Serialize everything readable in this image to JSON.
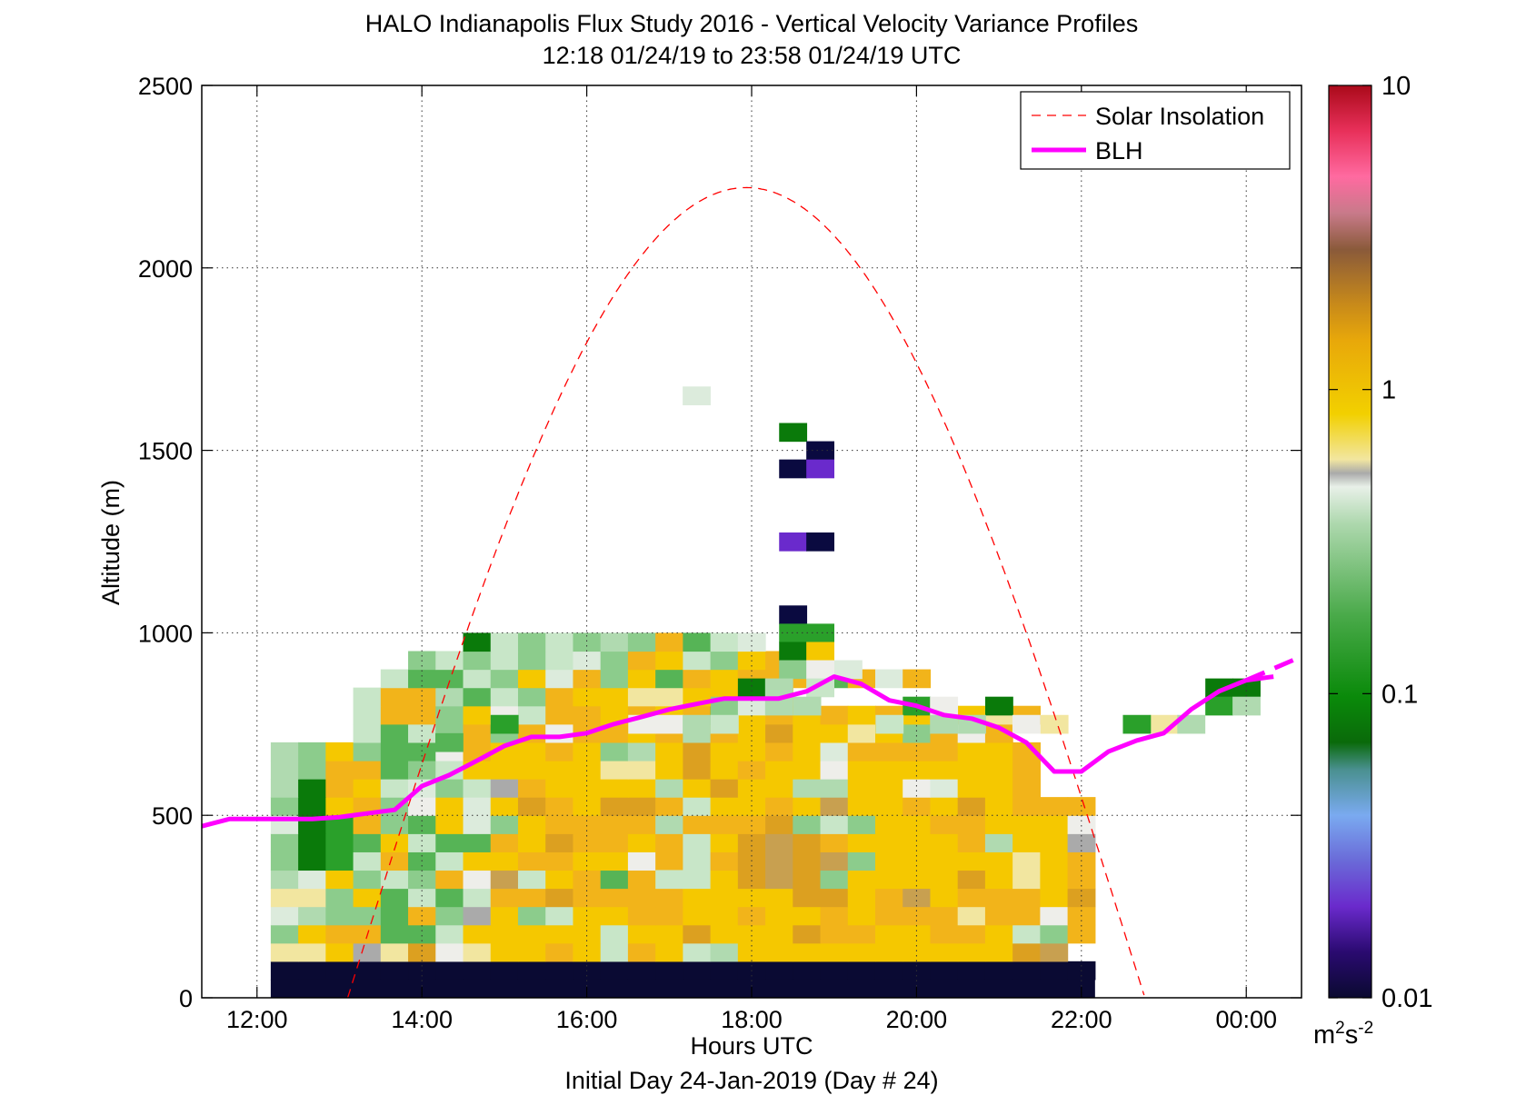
{
  "chart_data": {
    "type": "heatmap",
    "title": "HALO Indianapolis Flux Study 2016 - Vertical Velocity Variance Profiles",
    "subtitle": "12:18 01/24/19 to 23:58 01/24/19  UTC",
    "xlabel": "Hours UTC",
    "xlabel2": "Initial Day 24-Jan-2019 (Day # 24)",
    "ylabel": "Altitude (m)",
    "x_ticks": [
      {
        "label": "12:00",
        "value": 12
      },
      {
        "label": "14:00",
        "value": 14
      },
      {
        "label": "16:00",
        "value": 16
      },
      {
        "label": "18:00",
        "value": 18
      },
      {
        "label": "20:00",
        "value": 20
      },
      {
        "label": "22:00",
        "value": 22
      },
      {
        "label": "00:00",
        "value": 24
      }
    ],
    "y_ticks": [
      "0",
      "500",
      "1000",
      "1500",
      "2000",
      "2500"
    ],
    "xlim": [
      11.33,
      24.67
    ],
    "ylim": [
      0,
      2500
    ],
    "grid": true,
    "colorbar": {
      "scale": "log",
      "range": [
        0.01,
        10
      ],
      "ticks": [
        "0.01",
        "0.1",
        "1",
        "10"
      ],
      "unit_base": "m",
      "unit_sup1": "2",
      "unit_s": "s",
      "unit_sup2": "-2"
    },
    "legend": {
      "placement": "top-right",
      "entries": [
        {
          "name": "Solar Insolation",
          "color": "#ff0000",
          "style": "dashed"
        },
        {
          "name": "BLH",
          "color": "#ff00ff",
          "style": "solid"
        }
      ]
    },
    "grid_spec": {
      "t0": 12.3333,
      "dt": 0.3333,
      "ncols": 30,
      "z0": 75,
      "dz": 50,
      "row_altitudes_note": "rows listed bottom (75 m) to top"
    },
    "palette": {
      "0": "#0a0a33",
      "1": "#f2e6a0",
      "2": "#f5c800",
      "3": "#f2b41a",
      "4": "#dca020",
      "5": "#c8a050",
      "6": "#bbb0a0",
      "7": "#aaaaaa",
      "8": "#c8e6c8",
      "9": "#b0dab0",
      "a": "#8ccc8c",
      "b": "#56b456",
      "c": "#2aa02a",
      "d": "#0a7a0a",
      "e": "#eeeeea",
      "f": "#dcebdc",
      "g": "#6a2acc",
      "h": "#0a0a40"
    },
    "rows": [
      "000000000000000000000000000000",
      "112714e1223283289222222222245",
      "a233bb8222228224222433223328a3",
      "f9aab3a72a822332232232333133e34",
      "11a2b8b8334333322224423523332432",
      "9f2a8a3e5823b3282454a222242123",
      "adc83b8223322e3834545a22222123",
      "adcb28bb3243323824543222239227",
      "fdc3ab2fa2333393334a8a2233222e",
      "ad23ae2f2432443822325223242333",
      "9d328fa8732222924229922ef223",
      "9a33ba82222211242322e2222223",
      "9a2abbe32232a9242232f3333223",
      "   8b8a3a3e332393242212a3e3",
      "   833a2e8332323b23232322213",
      "   8339b8a322112242",
      "    8bb8a2f3a2b32333b3f3",
      "     a8a8a8fa328a23",
      "       d8a8a9a3b8f"
    ],
    "sparse_cells": [
      {
        "t": 17.0,
        "z": 325,
        "c": "8"
      }
    ],
    "isolated": [
      {
        "t": 17.33,
        "z": 1650,
        "c": "f"
      },
      {
        "t": 18.5,
        "z": 1550,
        "c": "d"
      },
      {
        "t": 18.83,
        "z": 1500,
        "c": "h"
      },
      {
        "t": 18.5,
        "z": 1450,
        "c": "h"
      },
      {
        "t": 18.83,
        "z": 1450,
        "c": "g"
      },
      {
        "t": 18.5,
        "z": 1250,
        "c": "g"
      },
      {
        "t": 18.83,
        "z": 1250,
        "c": "h"
      },
      {
        "t": 18.5,
        "z": 1050,
        "c": "h"
      },
      {
        "t": 18.5,
        "z": 1000,
        "c": "c"
      },
      {
        "t": 18.83,
        "z": 1000,
        "c": "c"
      },
      {
        "t": 18.5,
        "z": 950,
        "c": "d"
      },
      {
        "t": 18.5,
        "z": 900,
        "c": "a"
      },
      {
        "t": 18.83,
        "z": 950,
        "c": "2"
      },
      {
        "t": 18.83,
        "z": 900,
        "c": "e"
      },
      {
        "t": 19.17,
        "z": 900,
        "c": "f"
      },
      {
        "t": 18.0,
        "z": 850,
        "c": "d"
      },
      {
        "t": 18.33,
        "z": 850,
        "c": "9"
      },
      {
        "t": 18.83,
        "z": 850,
        "c": "8"
      },
      {
        "t": 23.67,
        "z": 850,
        "c": "d"
      },
      {
        "t": 24.0,
        "z": 850,
        "c": "d"
      },
      {
        "t": 17.67,
        "z": 800,
        "c": "a"
      },
      {
        "t": 18.0,
        "z": 800,
        "c": "f"
      },
      {
        "t": 18.33,
        "z": 800,
        "c": "9"
      },
      {
        "t": 18.67,
        "z": 800,
        "c": "9"
      },
      {
        "t": 20.0,
        "z": 800,
        "c": "c"
      },
      {
        "t": 20.33,
        "z": 800,
        "c": "e"
      },
      {
        "t": 21.0,
        "z": 800,
        "c": "d"
      },
      {
        "t": 23.67,
        "z": 800,
        "c": "c"
      },
      {
        "t": 24.0,
        "z": 800,
        "c": "9"
      },
      {
        "t": 16.67,
        "z": 750,
        "c": "e"
      },
      {
        "t": 17.0,
        "z": 750,
        "c": "e"
      },
      {
        "t": 17.33,
        "z": 750,
        "c": "9"
      },
      {
        "t": 17.67,
        "z": 750,
        "c": "8"
      },
      {
        "t": 19.67,
        "z": 750,
        "c": "8"
      },
      {
        "t": 20.33,
        "z": 750,
        "c": "9"
      },
      {
        "t": 20.67,
        "z": 750,
        "c": "9"
      },
      {
        "t": 21.33,
        "z": 750,
        "c": "e"
      },
      {
        "t": 21.67,
        "z": 750,
        "c": "1"
      },
      {
        "t": 23.0,
        "z": 750,
        "c": "1"
      },
      {
        "t": 23.33,
        "z": 750,
        "c": "9"
      },
      {
        "t": 15.0,
        "z": 750,
        "c": "c"
      },
      {
        "t": 22.67,
        "z": 750,
        "c": "c"
      },
      {
        "t": 14.33,
        "z": 700,
        "c": "b"
      }
    ],
    "blh": {
      "x": [
        11.33,
        11.67,
        12.0,
        12.33,
        12.67,
        13.0,
        13.33,
        13.67,
        14.0,
        14.33,
        14.67,
        15.0,
        15.33,
        15.67,
        16.0,
        16.33,
        16.67,
        17.0,
        17.33,
        17.67,
        18.0,
        18.33,
        18.67,
        19.0,
        19.33,
        19.67,
        20.0,
        20.33,
        20.67,
        21.0,
        21.33,
        21.67,
        22.0,
        22.33,
        22.67,
        23.0,
        23.33,
        23.67,
        24.0,
        24.33
      ],
      "y": [
        470,
        490,
        490,
        490,
        490,
        495,
        505,
        515,
        580,
        610,
        650,
        690,
        715,
        715,
        725,
        750,
        770,
        790,
        805,
        820,
        820,
        820,
        840,
        880,
        860,
        815,
        800,
        775,
        765,
        740,
        700,
        620,
        620,
        675,
        705,
        725,
        790,
        840,
        870,
        880
      ],
      "extension": {
        "x": [
          24.0,
          24.67
        ],
        "y": [
          870,
          935
        ]
      }
    },
    "solar": {
      "peak_t": 17.93,
      "peak_alt": 2220,
      "rise_t": 13.1,
      "set_t": 22.77
    }
  }
}
